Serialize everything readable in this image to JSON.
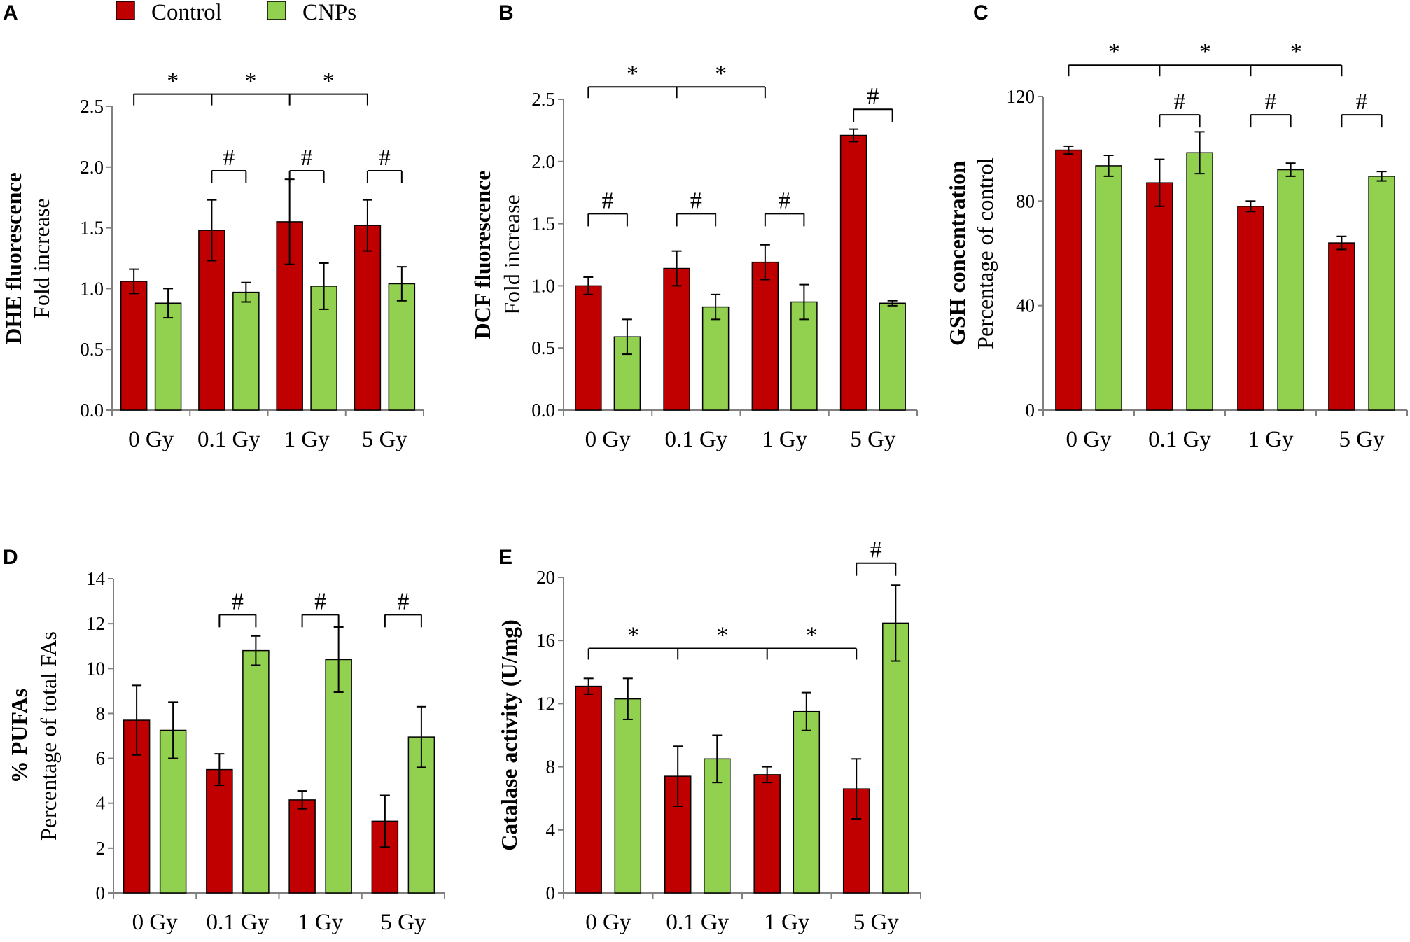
{
  "colors": {
    "control": "#C00000",
    "cnps": "#92D050",
    "axis": "#808080"
  },
  "legend": {
    "control": "Control",
    "cnps": "CNPs"
  },
  "chart_data": [
    {
      "id": "A",
      "type": "bar",
      "letter": "A",
      "ylabel_bold": "DHE fluorescence",
      "ylabel": "Fold increase",
      "ylim": [
        0,
        2.5
      ],
      "yticks": [
        "0.0",
        "0.5",
        "1.0",
        "1.5",
        "2.0",
        "2.5"
      ],
      "categories": [
        "0 Gy",
        "0.1 Gy",
        "1 Gy",
        "5 Gy"
      ],
      "series": [
        {
          "name": "Control",
          "values": [
            1.06,
            1.48,
            1.55,
            1.52
          ],
          "errors": [
            0.1,
            0.25,
            0.35,
            0.21
          ]
        },
        {
          "name": "CNPs",
          "values": [
            0.88,
            0.97,
            1.02,
            1.04
          ],
          "errors": [
            0.12,
            0.08,
            0.19,
            0.14
          ]
        }
      ],
      "star_bracket": {
        "height": 2.6,
        "stars": [
          "*",
          "*",
          "*"
        ]
      },
      "hash_pairs": [
        1,
        2,
        3
      ],
      "hash_height": 1.97,
      "hash": "#"
    },
    {
      "id": "B",
      "type": "bar",
      "letter": "B",
      "ylabel_bold": "DCF fluorescence",
      "ylabel": "Fold increase",
      "ylim": [
        0,
        2.5
      ],
      "yticks": [
        "0.0",
        "0.5",
        "1.0",
        "1.5",
        "2.0",
        "2.5"
      ],
      "categories": [
        "0 Gy",
        "0.1 Gy",
        "1 Gy",
        "5 Gy"
      ],
      "series": [
        {
          "name": "Control",
          "values": [
            1.0,
            1.14,
            1.19,
            2.21
          ],
          "errors": [
            0.07,
            0.14,
            0.14,
            0.05
          ]
        },
        {
          "name": "CNPs",
          "values": [
            0.59,
            0.83,
            0.87,
            0.86
          ],
          "errors": [
            0.14,
            0.1,
            0.14,
            0.02
          ]
        }
      ],
      "star_bracket": {
        "height": 2.6,
        "stars": [
          "*",
          "*"
        ]
      },
      "hash_pairs": [
        0,
        1,
        2
      ],
      "hash_height": 1.58,
      "hash": "#",
      "hash_pair_top": {
        "index": 3,
        "height": 2.42
      }
    },
    {
      "id": "C",
      "type": "bar",
      "letter": "C",
      "ylabel_bold": "GSH concentration",
      "ylabel": "Percentage  of control",
      "ylim": [
        0,
        120
      ],
      "yticks": [
        "0",
        "40",
        "80",
        "120"
      ],
      "categories": [
        "0 Gy",
        "0.1 Gy",
        "1 Gy",
        "5 Gy"
      ],
      "series": [
        {
          "name": "Control",
          "values": [
            99.5,
            87,
            78,
            64
          ],
          "errors": [
            1.5,
            9,
            2,
            2.5
          ]
        },
        {
          "name": "CNPs",
          "values": [
            93.5,
            98.5,
            92,
            89.5
          ],
          "errors": [
            4,
            8,
            2.5,
            1.8
          ]
        }
      ],
      "star_bracket": {
        "height": 132,
        "stars": [
          "*",
          "*",
          "*"
        ]
      },
      "hash_pairs": [
        1,
        2,
        3
      ],
      "hash_height": 113,
      "hash": "#"
    },
    {
      "id": "D",
      "type": "bar",
      "letter": "D",
      "ylabel_bold": "% PUFAs",
      "ylabel": "Percentage  of total FAs",
      "ylim": [
        0,
        14
      ],
      "yticks": [
        "0",
        "2",
        "4",
        "6",
        "8",
        "10",
        "12",
        "14"
      ],
      "categories": [
        "0 Gy",
        "0.1 Gy",
        "1 Gy",
        "5 Gy"
      ],
      "series": [
        {
          "name": "Control",
          "values": [
            7.7,
            5.5,
            4.15,
            3.2
          ],
          "errors": [
            1.55,
            0.7,
            0.4,
            1.15
          ]
        },
        {
          "name": "CNPs",
          "values": [
            7.25,
            10.8,
            10.4,
            6.95
          ],
          "errors": [
            1.25,
            0.65,
            1.45,
            1.35
          ]
        }
      ],
      "hash_pairs": [
        1,
        2,
        3
      ],
      "hash_height": 12.4,
      "hash": "#"
    },
    {
      "id": "E",
      "type": "bar",
      "letter": "E",
      "ylabel_bold": "Catalase activity (U/mg)",
      "ylim": [
        0,
        20
      ],
      "yticks": [
        "0",
        "4",
        "8",
        "12",
        "16",
        "20"
      ],
      "categories": [
        "0 Gy",
        "0.1 Gy",
        "1 Gy",
        "5 Gy"
      ],
      "series": [
        {
          "name": "Control",
          "values": [
            13.1,
            7.4,
            7.5,
            6.6
          ],
          "errors": [
            0.5,
            1.9,
            0.5,
            1.9
          ]
        },
        {
          "name": "CNPs",
          "values": [
            12.3,
            8.5,
            11.5,
            17.1
          ],
          "errors": [
            1.3,
            1.5,
            1.2,
            2.4
          ]
        }
      ],
      "star_bracket": {
        "height": 15.5,
        "stars": [
          "*",
          "*",
          "*"
        ]
      },
      "hash_pair_top": {
        "index": 3,
        "height": 20.9
      },
      "hash": "#"
    }
  ]
}
